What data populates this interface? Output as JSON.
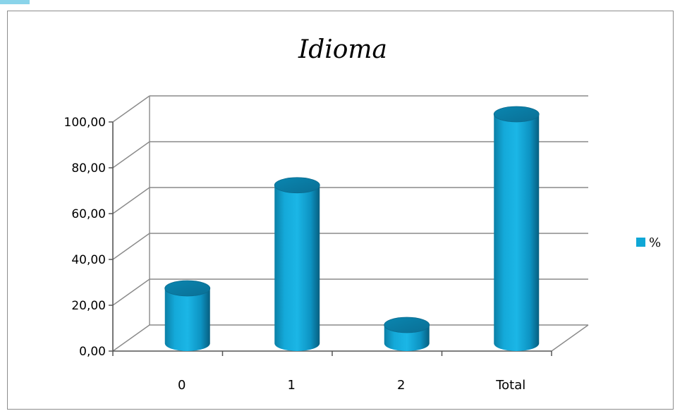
{
  "chart_data": {
    "type": "bar",
    "title": "Idioma",
    "categories": [
      "0",
      "1",
      "2",
      "Total"
    ],
    "series": [
      {
        "name": "%",
        "values": [
          24,
          69,
          8,
          100
        ],
        "color": "#0fa7d6"
      }
    ],
    "ylim": [
      0,
      100
    ],
    "yticks": [
      "0,00",
      "20,00",
      "40,00",
      "60,00",
      "80,00",
      "100,00"
    ],
    "grid": true,
    "legend_position": "right"
  }
}
